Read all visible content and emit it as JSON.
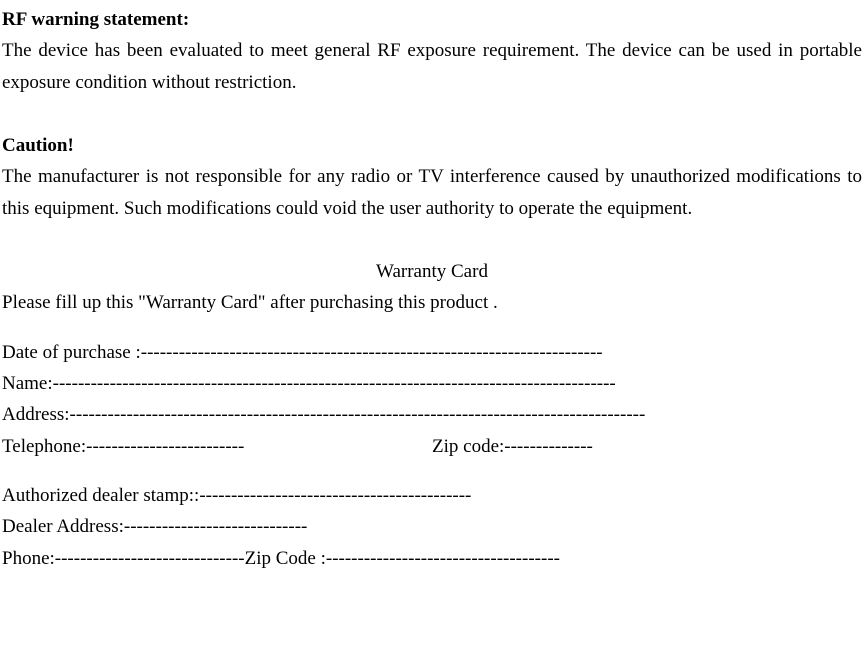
{
  "rf": {
    "heading": "RF warning statement:",
    "text": "The device has been evaluated to meet general RF exposure requirement. The device can be used in portable exposure condition without restriction."
  },
  "caution": {
    "heading": "Caution!",
    "text": "The manufacturer is not responsible for any radio or TV interference caused by unauthorized modifications to this equipment. Such modifications could void the user authority to operate the equipment."
  },
  "warranty": {
    "title": "Warranty Card",
    "intro": "Please fill up this \"Warranty Card\" after purchasing this product .",
    "date_line": "Date of purchase :-------------------------------------------------------------------------",
    "name_line": "Name:-----------------------------------------------------------------------------------------",
    "address_line": "Address:-------------------------------------------------------------------------------------------",
    "telephone_line": "Telephone:-------------------------",
    "zip_line": "Zip code:--------------",
    "dealer_stamp_line": "Authorized dealer stamp::-------------------------------------------",
    "dealer_address_line": "Dealer Address:-----------------------------",
    "phone_zip_line": "Phone:------------------------------Zip Code :-------------------------------------"
  }
}
